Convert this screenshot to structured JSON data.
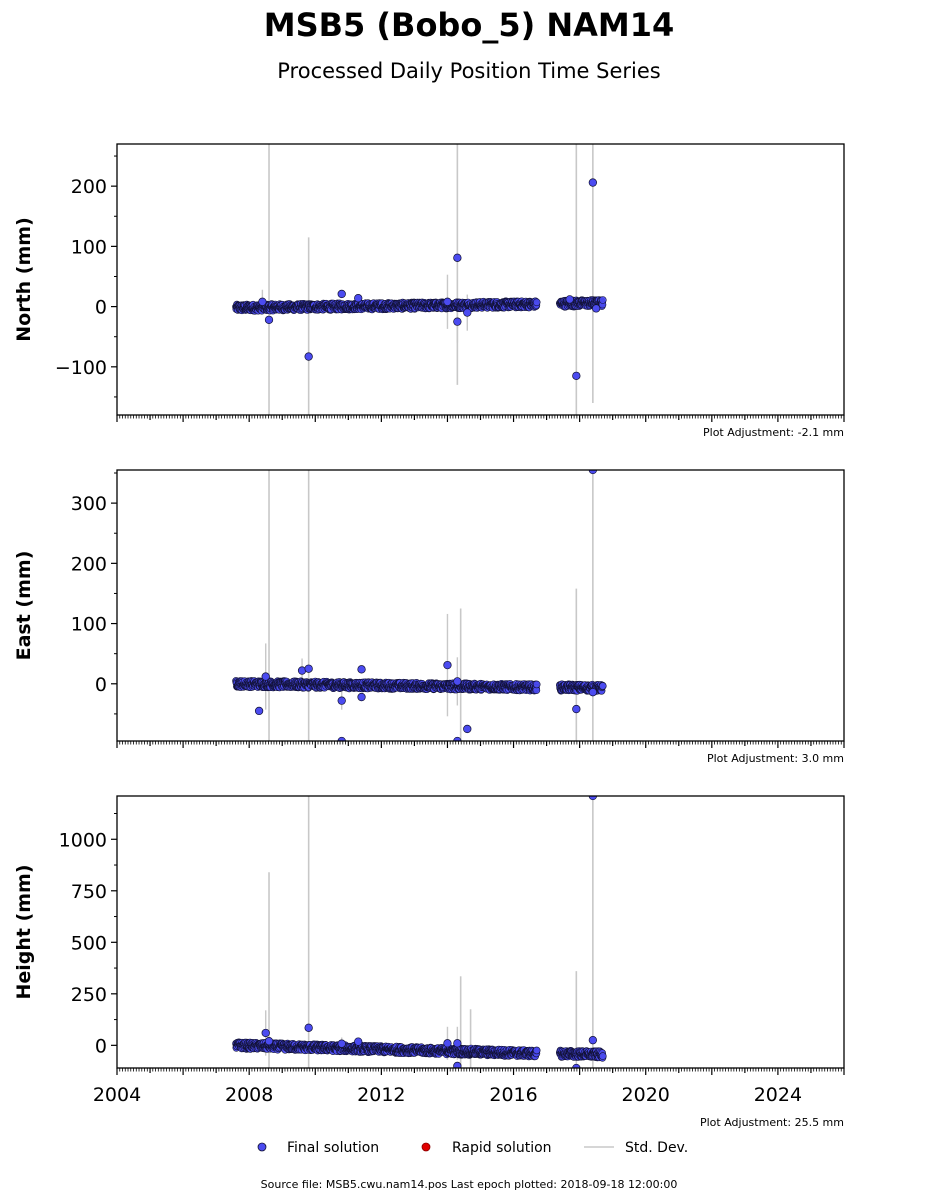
{
  "title": "MSB5 (Bobo_5) NAM14",
  "subtitle": "Processed Daily Position Time Series",
  "legend": {
    "final": "Final solution",
    "rapid": "Rapid solution",
    "std": "Std. Dev."
  },
  "footer": "Source file: MSB5.cwu.nam14.pos  Last epoch plotted: 2018-09-18 12:00:00",
  "colors": {
    "final": "#4b4bf0",
    "final_edge": "#111133",
    "rapid": "#e00000",
    "stddev": "#c8c8c8"
  },
  "chart_data": [
    {
      "type": "scatter",
      "ylabel": "North (mm)",
      "adjustment": "Plot Adjustment: -2.1 mm",
      "xlim": [
        2004,
        2026
      ],
      "ylim": [
        -180,
        270
      ],
      "yticks": [
        -100,
        0,
        100,
        200
      ],
      "ytick_labels": [
        "−100",
        "0",
        "100",
        "200"
      ],
      "segments": [
        {
          "from": 2007.6,
          "to": 2016.7,
          "start": -2,
          "end": 4
        },
        {
          "from": 2017.4,
          "to": 2018.7,
          "start": 5,
          "end": 6
        }
      ],
      "outliers": [
        {
          "x": 2008.4,
          "y": 8,
          "err": 20
        },
        {
          "x": 2008.6,
          "y": -22,
          "err": 0
        },
        {
          "x": 2009.8,
          "y": -83,
          "err": 0
        },
        {
          "x": 2010.8,
          "y": 21,
          "err": 0
        },
        {
          "x": 2011.3,
          "y": 14,
          "err": 0
        },
        {
          "x": 2014.0,
          "y": 8,
          "err": 45
        },
        {
          "x": 2014.3,
          "y": 81,
          "err": 0
        },
        {
          "x": 2014.3,
          "y": -25,
          "err": 35
        },
        {
          "x": 2014.6,
          "y": -10,
          "err": 30
        },
        {
          "x": 2017.7,
          "y": 12,
          "err": 0
        },
        {
          "x": 2017.9,
          "y": -115,
          "err": 0
        },
        {
          "x": 2018.4,
          "y": 206,
          "err": 0
        },
        {
          "x": 2018.5,
          "y": -3,
          "err": 0
        }
      ],
      "bars": [
        {
          "x": 2008.6,
          "lo": -180,
          "hi": 270
        },
        {
          "x": 2009.8,
          "lo": -180,
          "hi": 115
        },
        {
          "x": 2014.3,
          "lo": -130,
          "hi": 270
        },
        {
          "x": 2017.9,
          "lo": -180,
          "hi": 270
        },
        {
          "x": 2018.4,
          "lo": -160,
          "hi": 270
        }
      ]
    },
    {
      "type": "scatter",
      "ylabel": "East (mm)",
      "adjustment": "Plot Adjustment: 3.0 mm",
      "xlim": [
        2004,
        2026
      ],
      "ylim": [
        -95,
        355
      ],
      "yticks": [
        0,
        100,
        200,
        300
      ],
      "ytick_labels": [
        "0",
        "100",
        "200",
        "300"
      ],
      "segments": [
        {
          "from": 2007.6,
          "to": 2016.7,
          "start": 0,
          "end": -6
        },
        {
          "from": 2017.4,
          "to": 2018.7,
          "start": -6,
          "end": -7
        }
      ],
      "outliers": [
        {
          "x": 2008.3,
          "y": -45,
          "err": 0
        },
        {
          "x": 2008.5,
          "y": 12,
          "err": 55
        },
        {
          "x": 2009.6,
          "y": 22,
          "err": 20
        },
        {
          "x": 2009.8,
          "y": 25,
          "err": 0
        },
        {
          "x": 2010.8,
          "y": -28,
          "err": 15
        },
        {
          "x": 2010.8,
          "y": -95,
          "err": 0
        },
        {
          "x": 2011.4,
          "y": 24,
          "err": 0
        },
        {
          "x": 2011.4,
          "y": -22,
          "err": 0
        },
        {
          "x": 2014.0,
          "y": 31,
          "err": 85
        },
        {
          "x": 2014.3,
          "y": 4,
          "err": 40
        },
        {
          "x": 2014.3,
          "y": -95,
          "err": 0
        },
        {
          "x": 2014.6,
          "y": -75,
          "err": 0
        },
        {
          "x": 2017.9,
          "y": -42,
          "err": 0
        },
        {
          "x": 2018.4,
          "y": 355,
          "err": 0
        },
        {
          "x": 2018.4,
          "y": -14,
          "err": 0
        }
      ],
      "bars": [
        {
          "x": 2008.6,
          "lo": -95,
          "hi": 355
        },
        {
          "x": 2009.8,
          "lo": -95,
          "hi": 355
        },
        {
          "x": 2014.4,
          "lo": -95,
          "hi": 125
        },
        {
          "x": 2017.9,
          "lo": -95,
          "hi": 158
        },
        {
          "x": 2018.4,
          "lo": -95,
          "hi": 355
        }
      ]
    },
    {
      "type": "scatter",
      "ylabel": "Height (mm)",
      "adjustment": "Plot Adjustment: 25.5 mm",
      "xlim": [
        2004,
        2026
      ],
      "ylim": [
        -110,
        1210
      ],
      "yticks": [
        0,
        250,
        500,
        750,
        1000
      ],
      "ytick_labels": [
        "0",
        "250",
        "500",
        "750",
        "1000"
      ],
      "xticks": [
        2004,
        2008,
        2012,
        2016,
        2020,
        2024
      ],
      "xtick_labels": [
        "2004",
        "2008",
        "2012",
        "2016",
        "2020",
        "2024"
      ],
      "segments": [
        {
          "from": 2007.6,
          "to": 2016.7,
          "start": 0,
          "end": -40
        },
        {
          "from": 2017.4,
          "to": 2018.7,
          "start": -40,
          "end": -45
        }
      ],
      "outliers": [
        {
          "x": 2008.5,
          "y": 60,
          "err": 110
        },
        {
          "x": 2008.6,
          "y": 20,
          "err": 0
        },
        {
          "x": 2009.8,
          "y": 85,
          "err": 0
        },
        {
          "x": 2010.8,
          "y": 8,
          "err": 30
        },
        {
          "x": 2011.3,
          "y": 18,
          "err": 0
        },
        {
          "x": 2014.0,
          "y": 10,
          "err": 80
        },
        {
          "x": 2014.3,
          "y": 10,
          "err": 80
        },
        {
          "x": 2014.3,
          "y": -100,
          "err": 0
        },
        {
          "x": 2017.9,
          "y": -110,
          "err": 0
        },
        {
          "x": 2018.4,
          "y": 1210,
          "err": 0
        },
        {
          "x": 2018.4,
          "y": 25,
          "err": 0
        }
      ],
      "bars": [
        {
          "x": 2008.6,
          "lo": -110,
          "hi": 840
        },
        {
          "x": 2009.8,
          "lo": -110,
          "hi": 1210
        },
        {
          "x": 2014.4,
          "lo": -110,
          "hi": 335
        },
        {
          "x": 2014.7,
          "lo": -110,
          "hi": 175
        },
        {
          "x": 2017.9,
          "lo": -110,
          "hi": 360
        },
        {
          "x": 2018.4,
          "lo": -110,
          "hi": 1210
        }
      ]
    }
  ]
}
